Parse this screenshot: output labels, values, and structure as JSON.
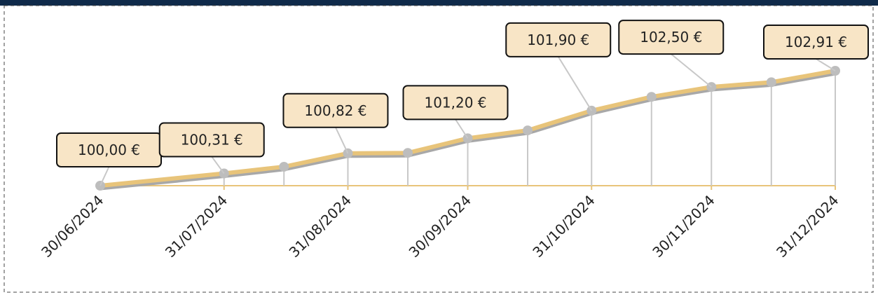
{
  "chart_data": {
    "type": "line",
    "x": [
      "2024-06-30",
      "2024-07-31",
      "2024-08-15",
      "2024-08-31",
      "2024-09-15",
      "2024-09-30",
      "2024-10-15",
      "2024-10-31",
      "2024-11-15",
      "2024-11-30",
      "2024-12-15",
      "2024-12-31"
    ],
    "series": [
      {
        "color": "#e8c47a",
        "values": [
          100.0,
          100.31,
          100.48,
          100.82,
          100.83,
          101.2,
          101.4,
          101.9,
          102.25,
          102.5,
          102.62,
          102.91
        ],
        "value_labels": [
          "100,00 €",
          "100,31 €",
          null,
          "100,82 €",
          null,
          "101,20 €",
          null,
          "101,90 €",
          null,
          "102,50 €",
          null,
          "102,91 €"
        ]
      }
    ],
    "xticks": [
      {
        "value": "2024-06-30",
        "label": "30/06/2024"
      },
      {
        "value": "2024-07-31",
        "label": "31/07/2024"
      },
      {
        "value": "2024-08-31",
        "label": "31/08/2024"
      },
      {
        "value": "2024-09-30",
        "label": "30/09/2024"
      },
      {
        "value": "2024-10-31",
        "label": "31/10/2024"
      },
      {
        "value": "2024-11-30",
        "label": "30/11/2024"
      },
      {
        "value": "2024-12-31",
        "label": "31/12/2024"
      }
    ]
  }
}
